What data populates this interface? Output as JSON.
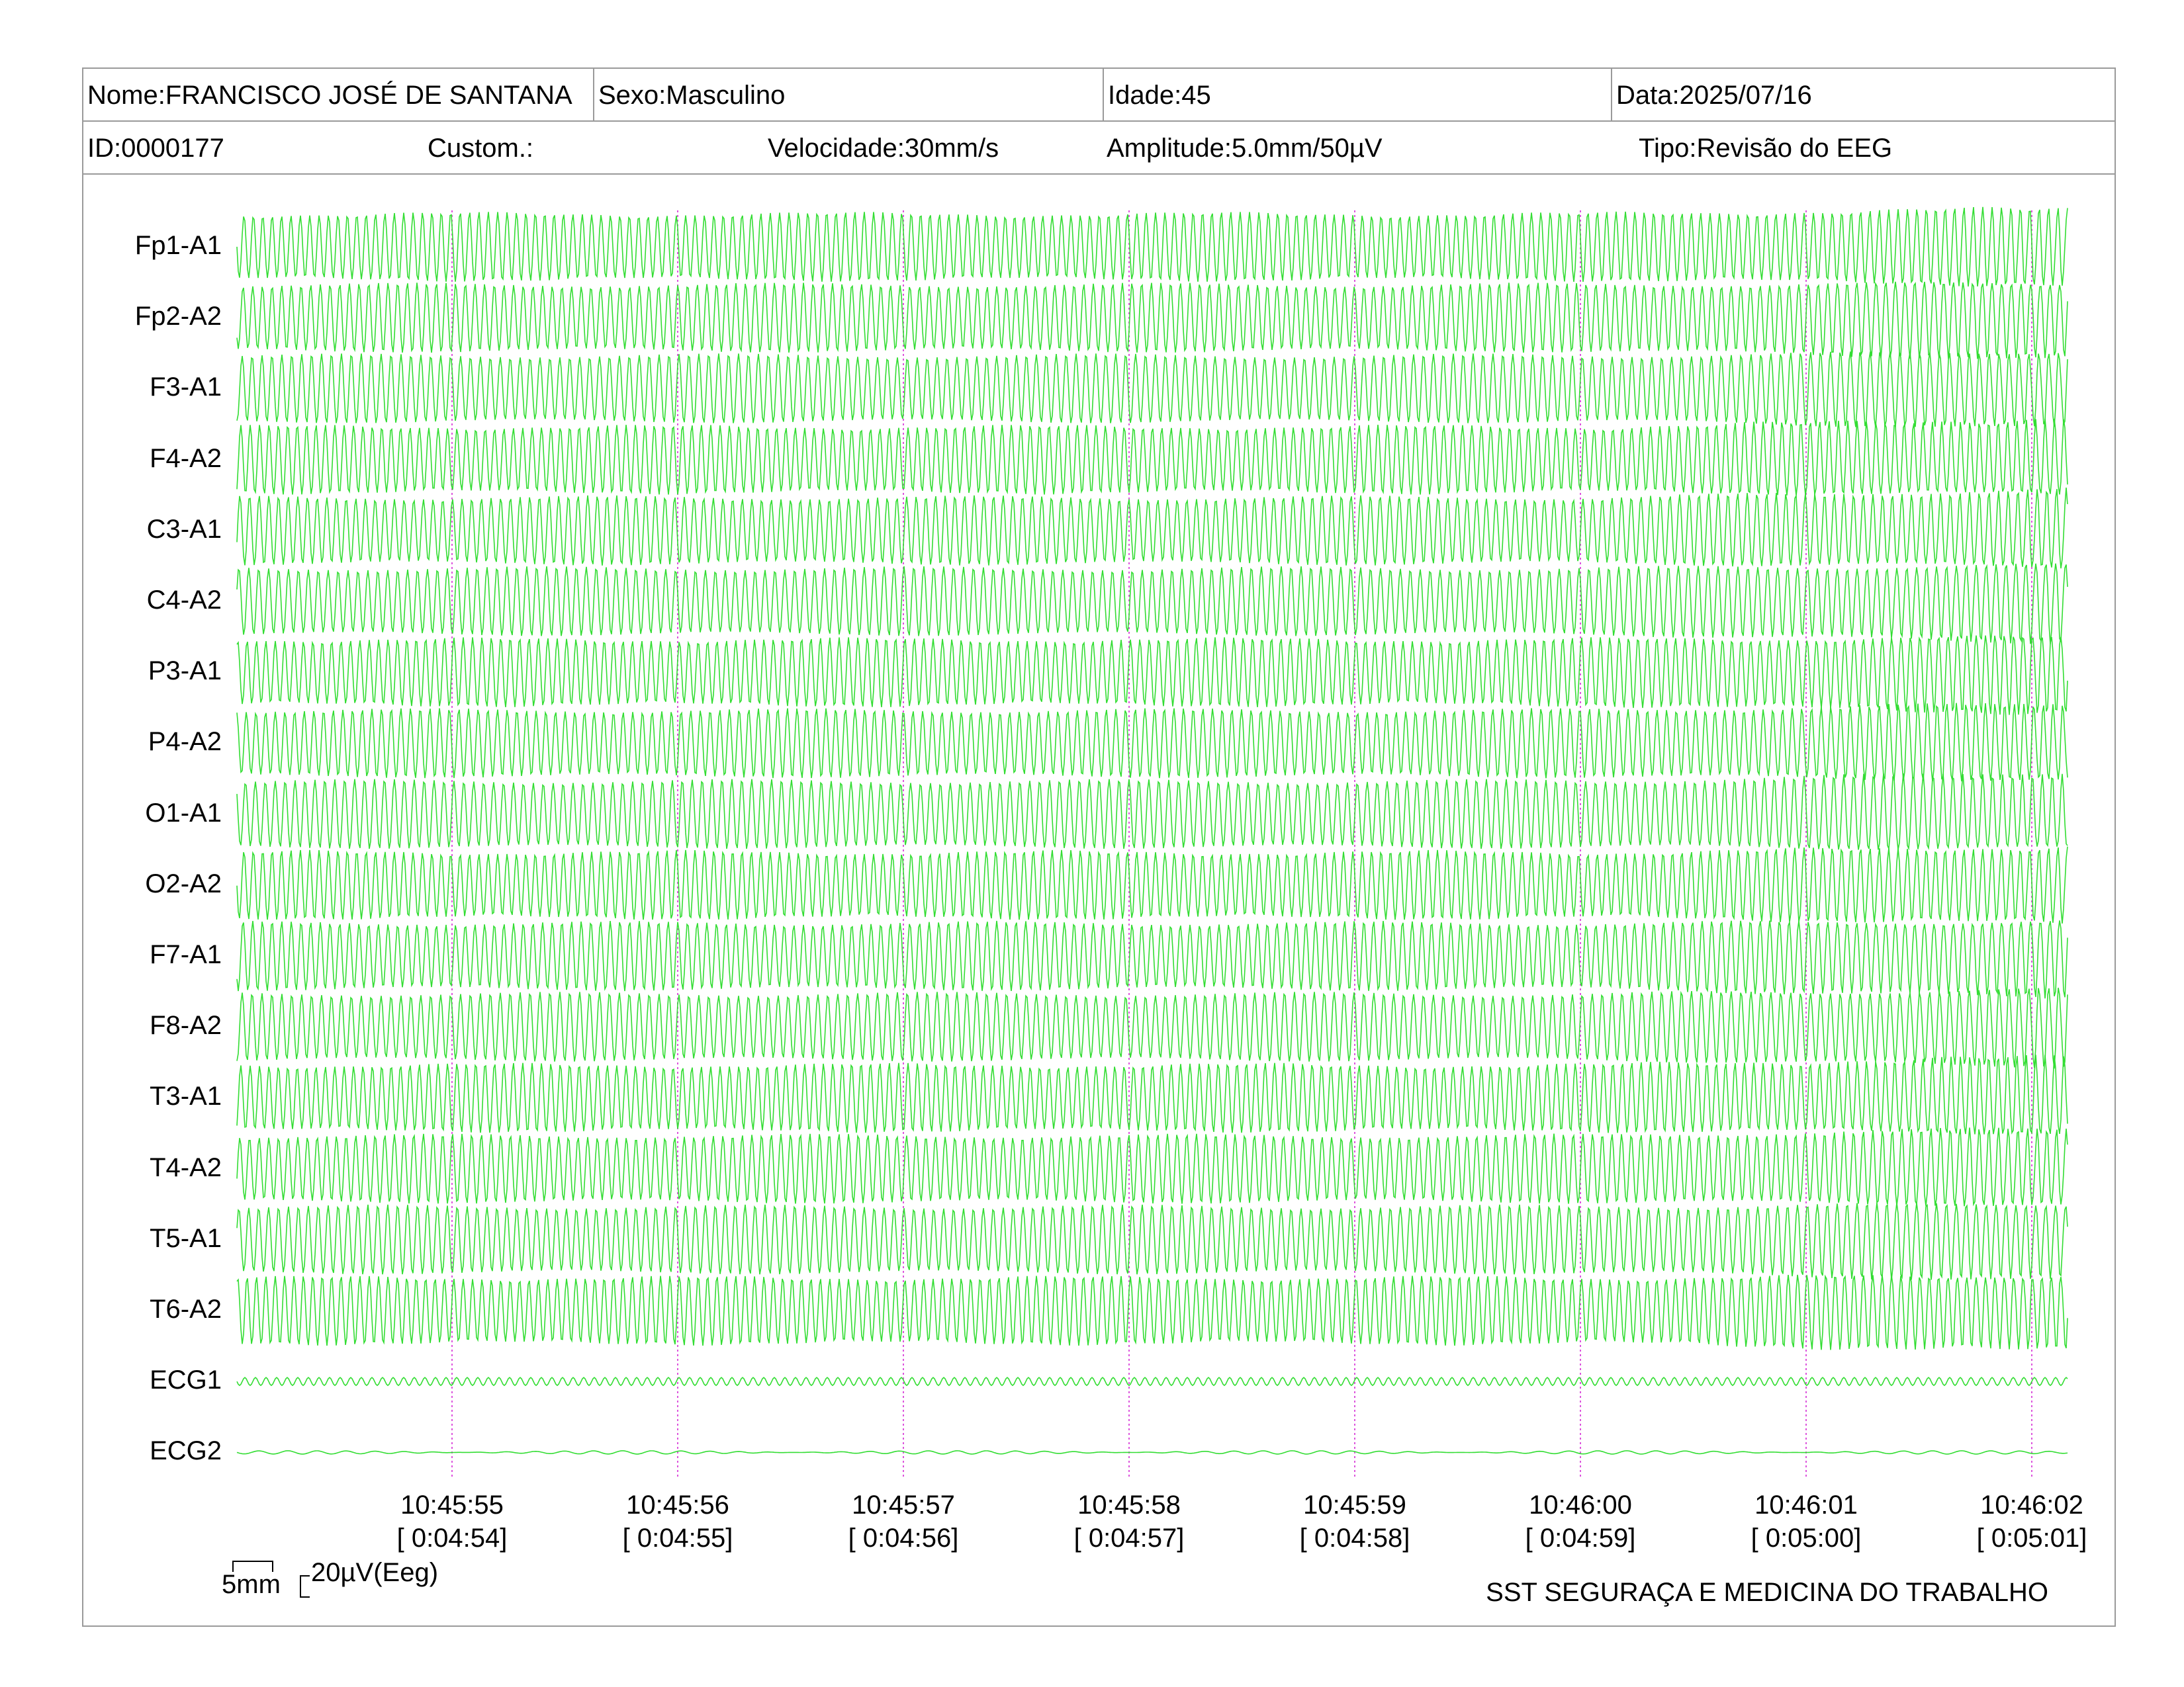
{
  "header": {
    "nome": "Nome:FRANCISCO JOSÉ DE SANTANA",
    "sexo": "Sexo:Masculino",
    "idade": "Idade:45",
    "data": "Data:2025/07/16",
    "id": "ID:0000177",
    "custom": "Custom.:",
    "velocidade": "Velocidade:30mm/s",
    "amplitude": "Amplitude:5.0mm/50µV",
    "tipo": "Tipo:Revisão do EEG"
  },
  "channels": [
    "Fp1-A1",
    "Fp2-A2",
    "F3-A1",
    "F4-A2",
    "C3-A1",
    "C4-A2",
    "P3-A1",
    "P4-A2",
    "O1-A1",
    "O2-A2",
    "F7-A1",
    "F8-A2",
    "T3-A1",
    "T4-A2",
    "T5-A1",
    "T6-A2",
    "ECG1",
    "ECG2"
  ],
  "time_marks": [
    {
      "clock": "10:45:55",
      "elapsed": "[ 0:04:54]"
    },
    {
      "clock": "10:45:56",
      "elapsed": "[ 0:04:55]"
    },
    {
      "clock": "10:45:57",
      "elapsed": "[ 0:04:56]"
    },
    {
      "clock": "10:45:58",
      "elapsed": "[ 0:04:57]"
    },
    {
      "clock": "10:45:59",
      "elapsed": "[ 0:04:58]"
    },
    {
      "clock": "10:46:00",
      "elapsed": "[ 0:04:59]"
    },
    {
      "clock": "10:46:01",
      "elapsed": "[ 0:05:00]"
    },
    {
      "clock": "10:46:02",
      "elapsed": "[ 0:05:01]"
    }
  ],
  "scale": {
    "time": "5mm",
    "amplitude": "20µV(Eeg)"
  },
  "footer": {
    "company": "SST SEGURAÇA E MEDICINA DO TRABALHO"
  },
  "colors": {
    "trace": "#33dd33",
    "marker": "#dd55dd",
    "border": "#9a9a9a"
  }
}
